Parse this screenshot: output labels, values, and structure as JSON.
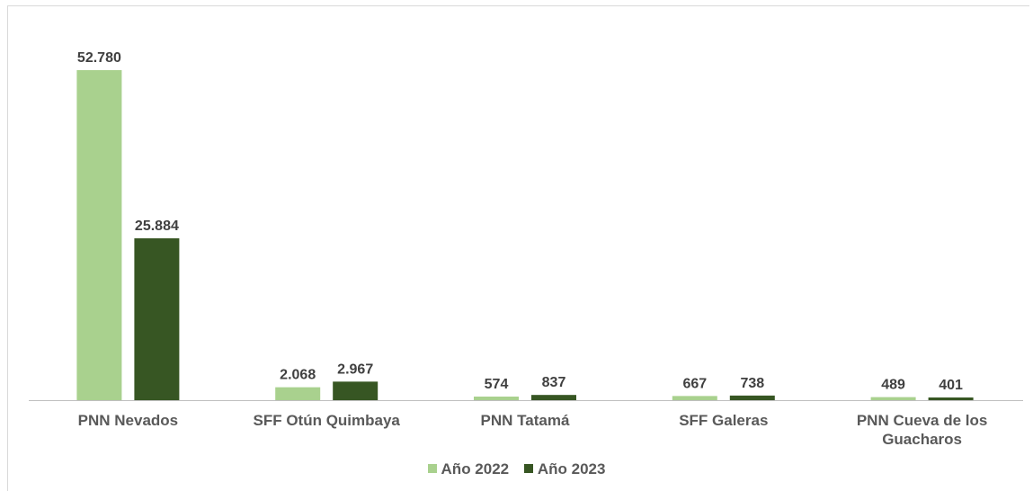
{
  "chart_data": {
    "type": "bar",
    "categories": [
      "PNN Nevados",
      "SFF Otún Quimbaya",
      "PNN Tatamá",
      "SFF Galeras",
      "PNN Cueva de los Guacharos"
    ],
    "category_lines": [
      [
        "PNN Nevados"
      ],
      [
        "SFF Otún Quimbaya"
      ],
      [
        "PNN Tatamá"
      ],
      [
        "SFF Galeras"
      ],
      [
        "PNN Cueva de los",
        "Guacharos"
      ]
    ],
    "series": [
      {
        "name": "Año 2022",
        "color": "#a9d18e",
        "values": [
          52780,
          2068,
          574,
          667,
          489
        ],
        "labels": [
          "52.780",
          "2.068",
          "574",
          "667",
          "489"
        ]
      },
      {
        "name": "Año 2023",
        "color": "#375623",
        "values": [
          25884,
          2967,
          837,
          738,
          401
        ],
        "labels": [
          "25.884",
          "2.967",
          "837",
          "738",
          "401"
        ]
      }
    ],
    "title": "",
    "xlabel": "",
    "ylabel": "",
    "ylim": [
      0,
      52780
    ],
    "grid": false,
    "legend_position": "bottom"
  }
}
